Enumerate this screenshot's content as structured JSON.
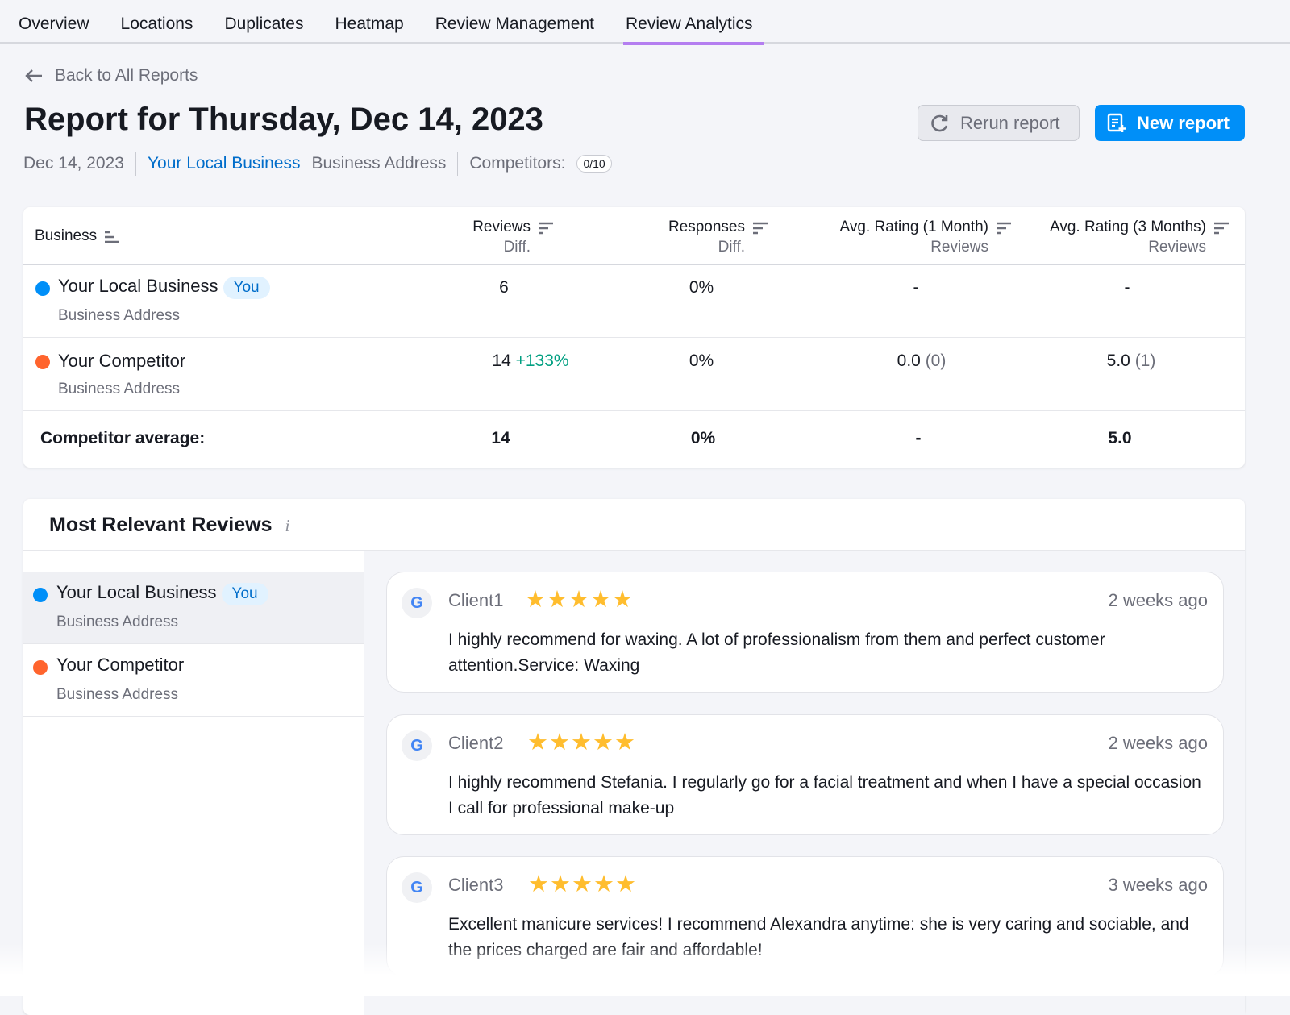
{
  "tabs": [
    "Overview",
    "Locations",
    "Duplicates",
    "Heatmap",
    "Review Management",
    "Review Analytics"
  ],
  "active_tab": "Review Analytics",
  "back_label": "Back to All Reports",
  "title": "Report for Thursday, Dec 14, 2023",
  "meta": {
    "date": "Dec 14, 2023",
    "business": "Your Local Business",
    "address": "Business Address",
    "competitors_label": "Competitors:",
    "competitors_count": "0/10"
  },
  "buttons": {
    "rerun": "Rerun report",
    "new": "New report"
  },
  "table": {
    "headers": {
      "business": "Business",
      "reviews": "Reviews",
      "reviews_sub": "Diff.",
      "responses": "Responses",
      "responses_sub": "Diff.",
      "avg1": "Avg. Rating (1 Month)",
      "avg1_sub": "Reviews",
      "avg3": "Avg. Rating (3 Months)",
      "avg3_sub": "Reviews"
    },
    "rows": [
      {
        "name": "Your Local Business",
        "badge": "You",
        "address": "Business Address",
        "color": "#008ff8",
        "reviews": "6",
        "reviews_diff": "",
        "responses": "0%",
        "avg1": "-",
        "avg1_count": "",
        "avg3": "-",
        "avg3_count": ""
      },
      {
        "name": "Your Competitor",
        "badge": "",
        "address": "Business Address",
        "color": "#ff642d",
        "reviews": "14",
        "reviews_diff": "+133%",
        "responses": "0%",
        "avg1": "0.0",
        "avg1_count": "(0)",
        "avg3": "5.0",
        "avg3_count": "(1)"
      }
    ],
    "average": {
      "label": "Competitor average:",
      "reviews": "14",
      "responses": "0%",
      "avg1": "-",
      "avg3": "5.0"
    }
  },
  "reviews_section": {
    "title": "Most Relevant Reviews",
    "businesses": [
      {
        "name": "Your Local Business",
        "badge": "You",
        "address": "Business Address",
        "color": "#008ff8",
        "selected": true
      },
      {
        "name": "Your Competitor",
        "address": "Business Address",
        "color": "#ff642d",
        "selected": false
      }
    ],
    "reviews": [
      {
        "client": "Client1",
        "rating": 5,
        "stars": "★★★★★",
        "ago": "2 weeks ago",
        "text": "I highly recommend for waxing. A lot of professionalism from them and perfect customer attention.Service: Waxing"
      },
      {
        "client": "Client2",
        "rating": 5,
        "stars": "★★★★★",
        "ago": "2 weeks ago",
        "text": "I highly recommend Stefania. I regularly go for a facial treatment and when I have a special occasion I call for professional make-up"
      },
      {
        "client": "Client3",
        "rating": 5,
        "stars": "★★★★★",
        "ago": "3 weeks ago",
        "text": "Excellent manicure services! I recommend Alexandra anytime: she is very caring and sociable, and the prices charged are fair and affordable!"
      }
    ]
  }
}
